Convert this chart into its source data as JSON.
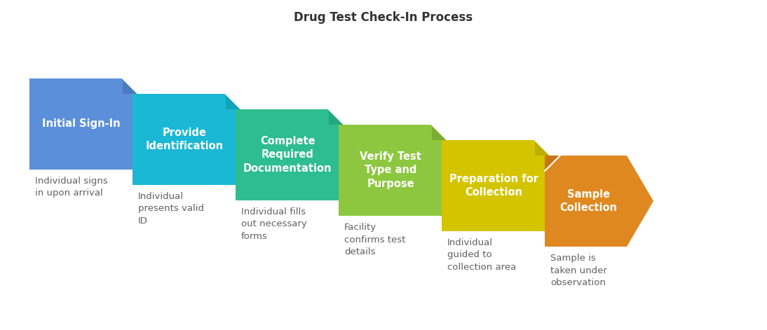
{
  "title": "Drug Test Check-In Process",
  "title_fontsize": 12,
  "background_color": "#ffffff",
  "steps": [
    {
      "label": "Initial Sign-In",
      "description": "Individual signs\nin upon arrival",
      "color": "#5b8fd9",
      "fold_color": "#4a7bbf",
      "is_arrow": false
    },
    {
      "label": "Provide\nIdentification",
      "description": "Individual\npresents valid\nID",
      "color": "#1ab8d4",
      "fold_color": "#0fa3bc",
      "is_arrow": false
    },
    {
      "label": "Complete\nRequired\nDocumentation",
      "description": "Individual fills\nout necessary\nforms",
      "color": "#2ebd8e",
      "fold_color": "#25a87c",
      "is_arrow": false
    },
    {
      "label": "Verify Test\nType and\nPurpose",
      "description": "Facility\nconfirms test\ndetails",
      "color": "#8dc73f",
      "fold_color": "#7aae30",
      "is_arrow": false
    },
    {
      "label": "Preparation for\nCollection",
      "description": "Individual\nguided to\ncollection area",
      "color": "#d4c400",
      "fold_color": "#bcad00",
      "is_arrow": false
    },
    {
      "label": "Sample\nCollection",
      "description": "Sample is\ntaken under\nobservation",
      "color": "#e08820",
      "fold_color": "#c87510",
      "is_arrow": true
    }
  ],
  "label_color": "#ffffff",
  "label_fontsize": 10.5,
  "desc_color": "#606060",
  "desc_fontsize": 9.5,
  "title_color": "#333333"
}
